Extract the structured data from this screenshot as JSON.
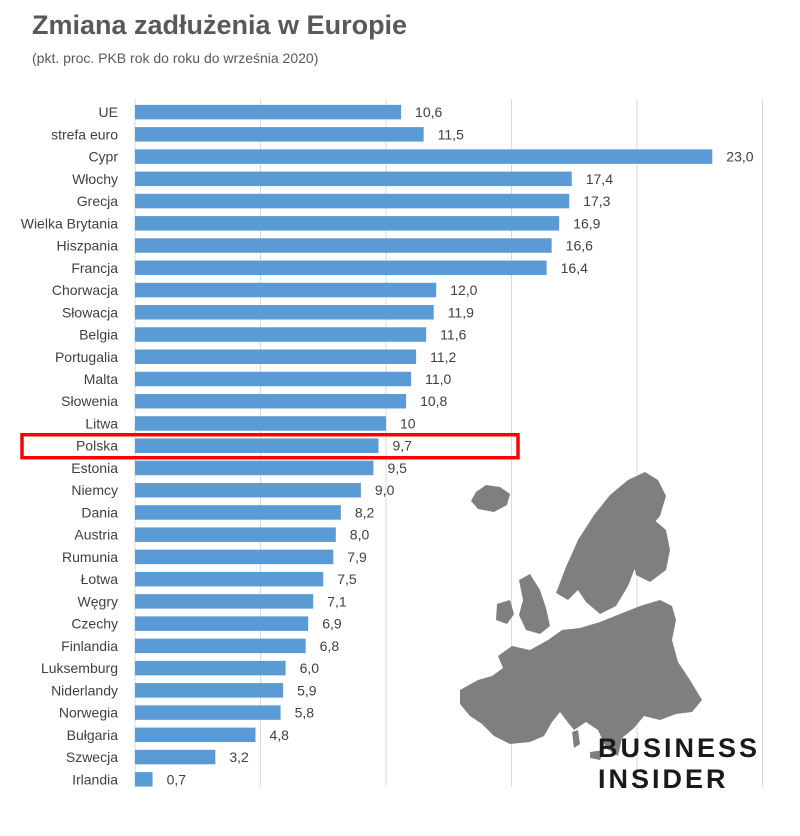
{
  "chart_data": {
    "type": "bar",
    "orientation": "horizontal",
    "title": "Zmiana zadłużenia w Europie",
    "subtitle": "(pkt. proc. PKB rok do roku do września 2020)",
    "categories": [
      "UE",
      "strefa euro",
      "Cypr",
      "Włochy",
      "Grecja",
      "Wielka Brytania",
      "Hiszpania",
      "Francja",
      "Chorwacja",
      "Słowacja",
      "Belgia",
      "Portugalia",
      "Malta",
      "Słowenia",
      "Litwa",
      "Polska",
      "Estonia",
      "Niemcy",
      "Dania",
      "Austria",
      "Rumunia",
      "Łotwa",
      "Węgry",
      "Czechy",
      "Finlandia",
      "Luksemburg",
      "Niderlandy",
      "Norwegia",
      "Bułgaria",
      "Szwecja",
      "Irlandia"
    ],
    "values": [
      10.6,
      11.5,
      23.0,
      17.4,
      17.3,
      16.9,
      16.6,
      16.4,
      12.0,
      11.9,
      11.6,
      11.2,
      11.0,
      10.8,
      10,
      9.7,
      9.5,
      9.0,
      8.2,
      8.0,
      7.9,
      7.5,
      7.1,
      6.9,
      6.8,
      6.0,
      5.9,
      5.8,
      4.8,
      3.2,
      0.7
    ],
    "value_labels": [
      "10,6",
      "11,5",
      "23,0",
      "17,4",
      "17,3",
      "16,9",
      "16,6",
      "16,4",
      "12,0",
      "11,9",
      "11,6",
      "11,2",
      "11,0",
      "10,8",
      "10",
      "9,7",
      "9,5",
      "9,0",
      "8,2",
      "8,0",
      "7,9",
      "7,5",
      "7,1",
      "6,9",
      "6,8",
      "6,0",
      "5,9",
      "5,8",
      "4,8",
      "3,2",
      "0,7"
    ],
    "xlim": [
      0,
      25
    ],
    "grid": true,
    "highlight": "Polska",
    "bar_color": "#5b9bd5",
    "highlight_color": "#ff0000"
  },
  "branding": {
    "line1": "BUSINESS",
    "line2": "INSIDER"
  },
  "map_color": "#7f7f7f"
}
